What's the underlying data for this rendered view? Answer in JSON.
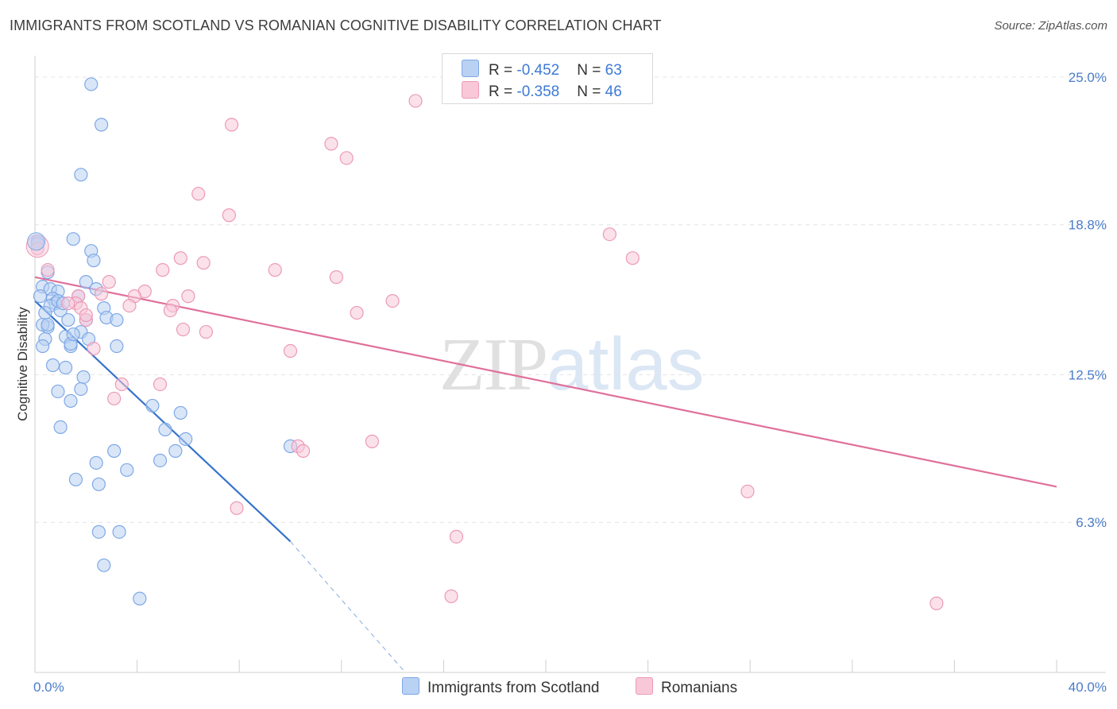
{
  "title": "IMMIGRANTS FROM SCOTLAND VS ROMANIAN COGNITIVE DISABILITY CORRELATION CHART",
  "source": "Source: ZipAtlas.com",
  "watermark": {
    "zip": "ZIP",
    "atlas": "atlas"
  },
  "colors": {
    "blue_fill": "#b9d1f3",
    "blue_stroke": "#7ea8e6",
    "blue_line": "#3473cc",
    "pink_fill": "#f8c8d8",
    "pink_stroke": "#ec9ab6",
    "pink_line": "#e0709a",
    "grid": "#e4e4e4",
    "tick_text": "#4a7cc9"
  },
  "legend": {
    "rows": [
      {
        "r_label": "R = ",
        "r_value": "-0.452",
        "n_label": "N = ",
        "n_value": "63"
      },
      {
        "r_label": "R = ",
        "r_value": "-0.358",
        "n_label": "N = ",
        "n_value": "46"
      }
    ]
  },
  "bottom_legend": [
    "Immigrants from Scotland",
    "Romanians"
  ],
  "chart_data": {
    "type": "scatter",
    "title": "IMMIGRANTS FROM SCOTLAND VS ROMANIAN COGNITIVE DISABILITY CORRELATION CHART",
    "xlabel": "",
    "ylabel": "Cognitive Disability",
    "xlim": [
      0,
      40
    ],
    "ylim": [
      0,
      25.9
    ],
    "x_tick_labels": [
      "0.0%",
      "40.0%"
    ],
    "y_ticks": [
      {
        "value": 25.0,
        "label": "25.0%"
      },
      {
        "value": 18.8,
        "label": "18.8%"
      },
      {
        "value": 12.5,
        "label": "12.5%"
      },
      {
        "value": 6.3,
        "label": "6.3%"
      }
    ],
    "series": [
      {
        "name": "Immigrants from Scotland",
        "color": "blue",
        "r": "-0.452",
        "n": "63",
        "points": [
          [
            2.2,
            24.7
          ],
          [
            2.6,
            23.0
          ],
          [
            1.8,
            20.9
          ],
          [
            0.1,
            18.1
          ],
          [
            1.5,
            18.2
          ],
          [
            2.2,
            17.7
          ],
          [
            2.3,
            17.3
          ],
          [
            0.5,
            16.8
          ],
          [
            2.0,
            16.4
          ],
          [
            0.3,
            16.2
          ],
          [
            0.6,
            16.1
          ],
          [
            2.4,
            16.1
          ],
          [
            0.9,
            16.0
          ],
          [
            0.2,
            15.8
          ],
          [
            1.7,
            15.8
          ],
          [
            0.7,
            15.7
          ],
          [
            0.8,
            15.5
          ],
          [
            0.6,
            15.4
          ],
          [
            1.0,
            15.2
          ],
          [
            0.4,
            15.1
          ],
          [
            2.7,
            15.3
          ],
          [
            1.3,
            14.8
          ],
          [
            2.8,
            14.9
          ],
          [
            3.2,
            14.8
          ],
          [
            2.0,
            14.8
          ],
          [
            0.5,
            14.5
          ],
          [
            0.3,
            14.6
          ],
          [
            1.8,
            14.3
          ],
          [
            1.2,
            14.1
          ],
          [
            2.1,
            14.0
          ],
          [
            0.4,
            14.0
          ],
          [
            1.4,
            13.7
          ],
          [
            1.4,
            13.8
          ],
          [
            3.2,
            13.7
          ],
          [
            0.3,
            13.7
          ],
          [
            0.7,
            12.9
          ],
          [
            1.2,
            12.8
          ],
          [
            1.9,
            12.4
          ],
          [
            0.9,
            11.8
          ],
          [
            1.8,
            11.9
          ],
          [
            1.4,
            11.4
          ],
          [
            4.6,
            11.2
          ],
          [
            5.7,
            10.9
          ],
          [
            1.0,
            10.3
          ],
          [
            5.1,
            10.2
          ],
          [
            5.9,
            9.8
          ],
          [
            10.0,
            9.5
          ],
          [
            3.1,
            9.3
          ],
          [
            5.5,
            9.3
          ],
          [
            2.4,
            8.8
          ],
          [
            4.9,
            8.9
          ],
          [
            3.6,
            8.5
          ],
          [
            1.6,
            8.1
          ],
          [
            2.5,
            7.9
          ],
          [
            2.5,
            5.9
          ],
          [
            3.3,
            5.9
          ],
          [
            2.7,
            4.5
          ],
          [
            4.1,
            3.1
          ],
          [
            0.1,
            18.0
          ],
          [
            0.9,
            15.6
          ],
          [
            1.1,
            15.5
          ],
          [
            0.5,
            14.6
          ],
          [
            1.5,
            14.2
          ]
        ],
        "trend": {
          "x": [
            0,
            10
          ],
          "y": [
            15.6,
            5.5
          ],
          "dashed_to": [
            14.5,
            0.0
          ]
        }
      },
      {
        "name": "Romanians",
        "color": "pink",
        "r": "-0.358",
        "n": "46",
        "points": [
          [
            14.9,
            24.0
          ],
          [
            7.7,
            23.0
          ],
          [
            11.6,
            22.2
          ],
          [
            12.2,
            21.6
          ],
          [
            6.4,
            20.1
          ],
          [
            7.6,
            19.2
          ],
          [
            22.5,
            18.4
          ],
          [
            23.4,
            17.4
          ],
          [
            5.7,
            17.4
          ],
          [
            6.6,
            17.2
          ],
          [
            0.1,
            17.8
          ],
          [
            0.5,
            16.9
          ],
          [
            5.0,
            16.9
          ],
          [
            9.4,
            16.9
          ],
          [
            11.8,
            16.6
          ],
          [
            2.9,
            16.4
          ],
          [
            4.3,
            16.0
          ],
          [
            1.7,
            15.8
          ],
          [
            2.6,
            15.9
          ],
          [
            3.9,
            15.8
          ],
          [
            6.0,
            15.8
          ],
          [
            1.6,
            15.5
          ],
          [
            14.0,
            15.6
          ],
          [
            3.7,
            15.4
          ],
          [
            5.4,
            15.4
          ],
          [
            1.8,
            15.3
          ],
          [
            5.3,
            15.2
          ],
          [
            12.6,
            15.1
          ],
          [
            2.0,
            14.8
          ],
          [
            5.8,
            14.4
          ],
          [
            6.7,
            14.3
          ],
          [
            2.3,
            13.6
          ],
          [
            10.0,
            13.5
          ],
          [
            3.4,
            12.1
          ],
          [
            4.9,
            12.1
          ],
          [
            3.1,
            11.5
          ],
          [
            13.2,
            9.7
          ],
          [
            10.3,
            9.5
          ],
          [
            10.5,
            9.3
          ],
          [
            7.9,
            6.9
          ],
          [
            27.9,
            7.6
          ],
          [
            16.5,
            5.7
          ],
          [
            16.3,
            3.2
          ],
          [
            35.3,
            2.9
          ],
          [
            1.3,
            15.5
          ],
          [
            2.0,
            15.0
          ]
        ],
        "trend": {
          "x": [
            0,
            40
          ],
          "y": [
            16.6,
            7.8
          ]
        }
      }
    ]
  }
}
